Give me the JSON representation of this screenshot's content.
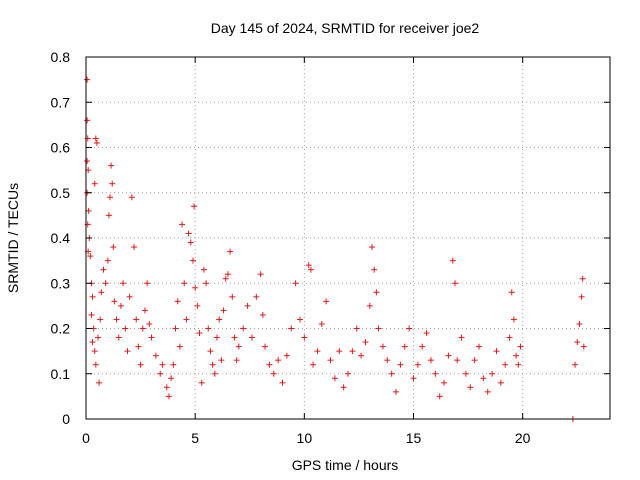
{
  "chart_data": {
    "type": "scatter",
    "title": "Day 145 of 2024, SRMTID for receiver joe2",
    "xlabel": "GPS time / hours",
    "ylabel": "SRMTID / TECUs",
    "xlim": [
      0,
      24
    ],
    "ylim": [
      0,
      0.8
    ],
    "xticks": [
      0,
      5,
      10,
      15,
      20
    ],
    "yticks": [
      0,
      0.1,
      0.2,
      0.3,
      0.4,
      0.5,
      0.6,
      0.7,
      0.8
    ],
    "xtick_labels": [
      "0",
      "5",
      "10",
      "15",
      "20"
    ],
    "ytick_labels": [
      "0",
      "0.1",
      "0.2",
      "0.3",
      "0.4",
      "0.5",
      "0.6",
      "0.7",
      "0.8"
    ],
    "grid": true,
    "marker": "+",
    "color": "#e41a1c",
    "series": [
      {
        "name": "SRMTID",
        "points": [
          [
            0.05,
            0.75
          ],
          [
            0.05,
            0.66
          ],
          [
            0.08,
            0.62
          ],
          [
            0.05,
            0.57
          ],
          [
            0.1,
            0.55
          ],
          [
            0.05,
            0.5
          ],
          [
            0.12,
            0.46
          ],
          [
            0.08,
            0.43
          ],
          [
            0.15,
            0.4
          ],
          [
            0.1,
            0.37
          ],
          [
            0.2,
            0.36
          ],
          [
            0.25,
            0.3
          ],
          [
            0.3,
            0.27
          ],
          [
            0.25,
            0.23
          ],
          [
            0.35,
            0.2
          ],
          [
            0.3,
            0.17
          ],
          [
            0.4,
            0.15
          ],
          [
            0.45,
            0.12
          ],
          [
            0.4,
            0.52
          ],
          [
            0.5,
            0.61
          ],
          [
            0.45,
            0.62
          ],
          [
            0.55,
            0.18
          ],
          [
            0.6,
            0.08
          ],
          [
            0.65,
            0.22
          ],
          [
            0.7,
            0.28
          ],
          [
            0.8,
            0.33
          ],
          [
            0.9,
            0.3
          ],
          [
            1.0,
            0.35
          ],
          [
            1.05,
            0.45
          ],
          [
            1.1,
            0.49
          ],
          [
            1.15,
            0.56
          ],
          [
            1.2,
            0.52
          ],
          [
            1.25,
            0.38
          ],
          [
            1.3,
            0.26
          ],
          [
            1.4,
            0.22
          ],
          [
            1.5,
            0.18
          ],
          [
            1.6,
            0.25
          ],
          [
            1.7,
            0.3
          ],
          [
            1.8,
            0.2
          ],
          [
            1.9,
            0.15
          ],
          [
            2.0,
            0.27
          ],
          [
            2.1,
            0.49
          ],
          [
            2.2,
            0.38
          ],
          [
            2.3,
            0.22
          ],
          [
            2.4,
            0.16
          ],
          [
            2.5,
            0.12
          ],
          [
            2.6,
            0.2
          ],
          [
            2.7,
            0.24
          ],
          [
            2.8,
            0.3
          ],
          [
            2.9,
            0.21
          ],
          [
            3.0,
            0.18
          ],
          [
            3.2,
            0.14
          ],
          [
            3.4,
            0.1
          ],
          [
            3.5,
            0.12
          ],
          [
            3.7,
            0.07
          ],
          [
            3.8,
            0.05
          ],
          [
            3.9,
            0.09
          ],
          [
            4.0,
            0.12
          ],
          [
            4.1,
            0.2
          ],
          [
            4.2,
            0.26
          ],
          [
            4.3,
            0.16
          ],
          [
            4.4,
            0.43
          ],
          [
            4.5,
            0.3
          ],
          [
            4.6,
            0.22
          ],
          [
            4.7,
            0.41
          ],
          [
            4.8,
            0.39
          ],
          [
            4.9,
            0.35
          ],
          [
            4.95,
            0.47
          ],
          [
            5.0,
            0.29
          ],
          [
            5.1,
            0.25
          ],
          [
            5.2,
            0.19
          ],
          [
            5.3,
            0.08
          ],
          [
            5.4,
            0.33
          ],
          [
            5.5,
            0.3
          ],
          [
            5.6,
            0.2
          ],
          [
            5.7,
            0.15
          ],
          [
            5.8,
            0.12
          ],
          [
            5.9,
            0.1
          ],
          [
            6.0,
            0.18
          ],
          [
            6.1,
            0.22
          ],
          [
            6.2,
            0.13
          ],
          [
            6.3,
            0.24
          ],
          [
            6.4,
            0.31
          ],
          [
            6.5,
            0.32
          ],
          [
            6.6,
            0.37
          ],
          [
            6.7,
            0.27
          ],
          [
            6.8,
            0.18
          ],
          [
            6.9,
            0.13
          ],
          [
            7.0,
            0.16
          ],
          [
            7.2,
            0.2
          ],
          [
            7.4,
            0.25
          ],
          [
            7.6,
            0.18
          ],
          [
            7.8,
            0.27
          ],
          [
            8.0,
            0.32
          ],
          [
            8.1,
            0.23
          ],
          [
            8.2,
            0.16
          ],
          [
            8.4,
            0.12
          ],
          [
            8.6,
            0.1
          ],
          [
            8.8,
            0.13
          ],
          [
            9.0,
            0.08
          ],
          [
            9.2,
            0.14
          ],
          [
            9.4,
            0.2
          ],
          [
            9.6,
            0.3
          ],
          [
            9.8,
            0.22
          ],
          [
            10.0,
            0.18
          ],
          [
            10.2,
            0.34
          ],
          [
            10.3,
            0.33
          ],
          [
            10.4,
            0.12
          ],
          [
            10.6,
            0.15
          ],
          [
            10.8,
            0.21
          ],
          [
            11.0,
            0.26
          ],
          [
            11.2,
            0.13
          ],
          [
            11.4,
            0.09
          ],
          [
            11.6,
            0.15
          ],
          [
            11.8,
            0.07
          ],
          [
            12.0,
            0.1
          ],
          [
            12.2,
            0.15
          ],
          [
            12.4,
            0.2
          ],
          [
            12.6,
            0.14
          ],
          [
            12.8,
            0.17
          ],
          [
            13.0,
            0.25
          ],
          [
            13.1,
            0.38
          ],
          [
            13.2,
            0.33
          ],
          [
            13.3,
            0.28
          ],
          [
            13.4,
            0.2
          ],
          [
            13.6,
            0.16
          ],
          [
            13.8,
            0.13
          ],
          [
            14.0,
            0.1
          ],
          [
            14.2,
            0.06
          ],
          [
            14.4,
            0.12
          ],
          [
            14.6,
            0.16
          ],
          [
            14.8,
            0.2
          ],
          [
            15.0,
            0.09
          ],
          [
            15.2,
            0.12
          ],
          [
            15.4,
            0.16
          ],
          [
            15.6,
            0.19
          ],
          [
            15.8,
            0.13
          ],
          [
            16.0,
            0.1
          ],
          [
            16.2,
            0.05
          ],
          [
            16.4,
            0.08
          ],
          [
            16.6,
            0.14
          ],
          [
            16.8,
            0.35
          ],
          [
            16.9,
            0.3
          ],
          [
            17.0,
            0.13
          ],
          [
            17.2,
            0.18
          ],
          [
            17.4,
            0.1
          ],
          [
            17.6,
            0.07
          ],
          [
            17.8,
            0.13
          ],
          [
            18.0,
            0.16
          ],
          [
            18.2,
            0.09
          ],
          [
            18.4,
            0.06
          ],
          [
            18.6,
            0.1
          ],
          [
            18.8,
            0.15
          ],
          [
            19.0,
            0.08
          ],
          [
            19.2,
            0.12
          ],
          [
            19.4,
            0.18
          ],
          [
            19.5,
            0.28
          ],
          [
            19.6,
            0.22
          ],
          [
            19.7,
            0.14
          ],
          [
            19.8,
            0.12
          ],
          [
            19.9,
            0.16
          ],
          [
            22.3,
            0.0
          ],
          [
            22.4,
            0.12
          ],
          [
            22.5,
            0.17
          ],
          [
            22.6,
            0.21
          ],
          [
            22.7,
            0.27
          ],
          [
            22.75,
            0.31
          ],
          [
            22.8,
            0.16
          ]
        ]
      }
    ]
  }
}
